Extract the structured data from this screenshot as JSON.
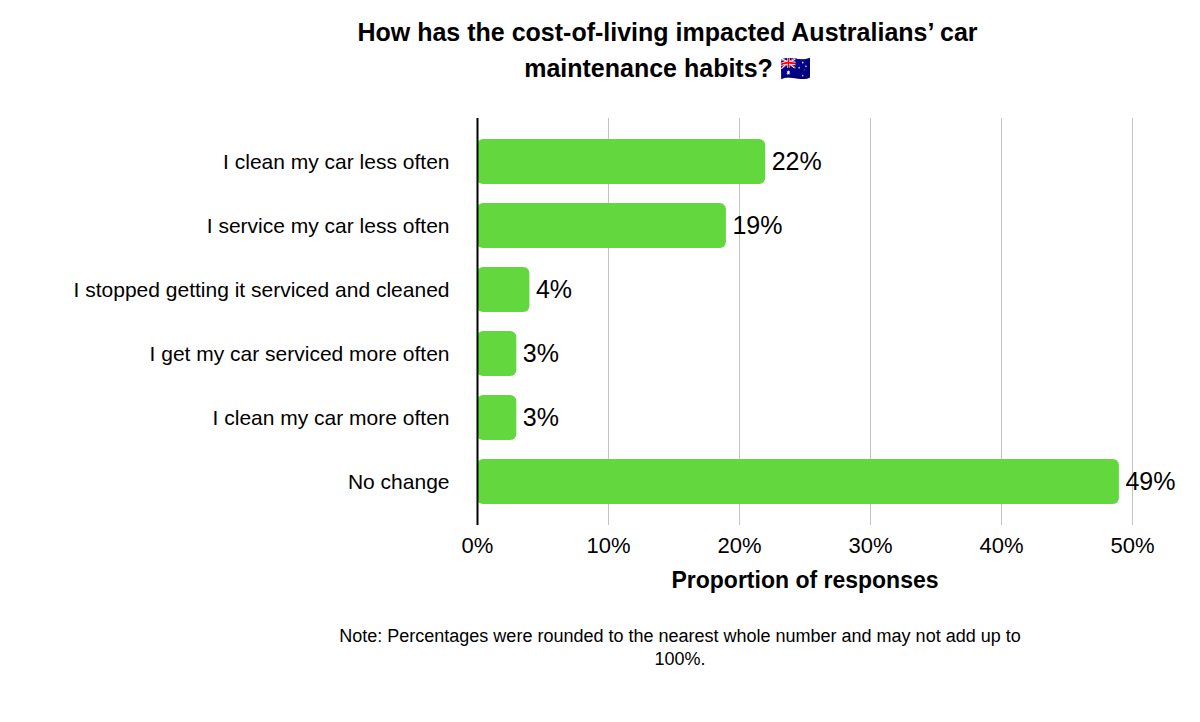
{
  "chart_data": {
    "type": "bar",
    "title": "How has the cost-of-living impacted Australians’ car maintenance habits? 🇦🇺",
    "orientation": "horizontal",
    "categories": [
      "I clean my car less often",
      "I service my car less often",
      "I stopped getting it serviced and cleaned",
      "I get my car serviced more often",
      "I clean my car more often",
      "No change"
    ],
    "values": [
      22,
      19,
      4,
      3,
      3,
      49
    ],
    "value_labels": [
      "22%",
      "19%",
      "4%",
      "3%",
      "3%",
      "49%"
    ],
    "data_labels": true,
    "color": "#62d83e",
    "xlabel": "Proportion of responses",
    "xlim": [
      0,
      50
    ],
    "xticks": [
      {
        "value": 0,
        "label": "0%"
      },
      {
        "value": 10,
        "label": "10%"
      },
      {
        "value": 20,
        "label": "20%"
      },
      {
        "value": 30,
        "label": "30%"
      },
      {
        "value": 40,
        "label": "40%"
      },
      {
        "value": 50,
        "label": "50%"
      }
    ],
    "grid": true,
    "note": "Note: Percentages were rounded to the nearest whole number and may not add up to 100%."
  }
}
